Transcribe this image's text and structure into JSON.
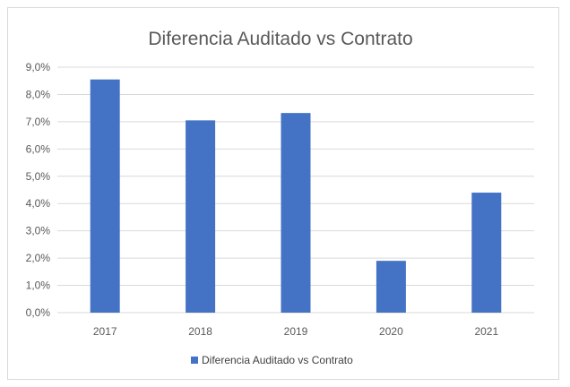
{
  "chart_data": {
    "type": "bar",
    "title": "Diferencia Auditado vs Contrato",
    "categories": [
      "2017",
      "2018",
      "2019",
      "2020",
      "2021"
    ],
    "series": [
      {
        "name": "Diferencia Auditado vs Contrato",
        "values": [
          8.55,
          7.05,
          7.32,
          1.9,
          4.4
        ],
        "color": "#4472c4"
      }
    ],
    "ylim": [
      0,
      9
    ],
    "yticks": [
      "0,0%",
      "1,0%",
      "2,0%",
      "3,0%",
      "4,0%",
      "5,0%",
      "6,0%",
      "7,0%",
      "8,0%",
      "9,0%"
    ],
    "grid": true,
    "legend": "bottom"
  }
}
